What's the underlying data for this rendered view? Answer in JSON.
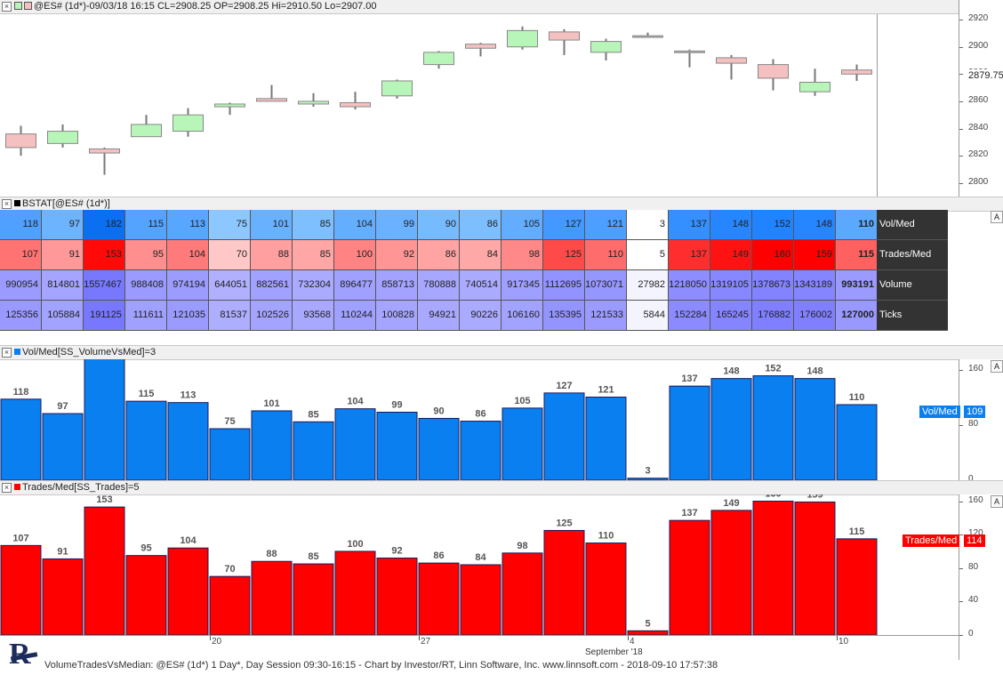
{
  "price_pane": {
    "title": "@ES# (1d*)-09/03/18 16:15 CL=2908.25 OP=2908.25 Hi=2910.50 Lo=2907.00",
    "last_price": "2879.75",
    "colors": {
      "up": "#b8f5b8",
      "down": "#f5c0c0",
      "wick": "#777777"
    }
  },
  "bstat_pane": {
    "title": "BSTAT[@ES# (1d*)]",
    "rows": [
      {
        "label": "Vol/Med",
        "values": [
          "118",
          "97",
          "182",
          "115",
          "113",
          "75",
          "101",
          "85",
          "104",
          "99",
          "90",
          "86",
          "105",
          "127",
          "121",
          "3",
          "137",
          "148",
          "152",
          "148",
          "110"
        ]
      },
      {
        "label": "Trades/Med",
        "values": [
          "107",
          "91",
          "153",
          "95",
          "104",
          "70",
          "88",
          "85",
          "100",
          "92",
          "86",
          "84",
          "98",
          "125",
          "110",
          "5",
          "137",
          "149",
          "160",
          "159",
          "115"
        ]
      },
      {
        "label": "Volume",
        "values": [
          "990954",
          "814801",
          "1557467",
          "988408",
          "974194",
          "644051",
          "882561",
          "732304",
          "896477",
          "858713",
          "780888",
          "740514",
          "917345",
          "1112695",
          "1073071",
          "27982",
          "1218050",
          "1319105",
          "1378673",
          "1343189",
          "993191"
        ]
      },
      {
        "label": "Ticks",
        "values": [
          "125356",
          "105884",
          "191125",
          "111611",
          "121035",
          "81537",
          "102526",
          "93568",
          "110244",
          "100828",
          "94921",
          "90226",
          "106160",
          "135395",
          "121533",
          "5844",
          "152284",
          "165245",
          "176882",
          "176002",
          "127000"
        ]
      }
    ]
  },
  "vol_pane": {
    "title": "Vol/Med[SS_VolumeVsMed]=3",
    "flag_label": "Vol/Med",
    "flag_value": "109",
    "color": "#0a7ff0"
  },
  "trades_pane": {
    "title": "Trades/Med[SS_Trades]=5",
    "flag_label": "Trades/Med",
    "flag_value": "114",
    "color": "#ff0000"
  },
  "x_axis": {
    "labels": [
      {
        "text": "20",
        "index": 5
      },
      {
        "text": "27",
        "index": 10
      },
      {
        "text": "4",
        "index": 15
      },
      {
        "text": "10",
        "index": 20
      }
    ],
    "month_label": "September '18"
  },
  "footer": {
    "text": "VolumeTradesVsMedian: @ES# (1d*) 1 Day*, Day Session 09:30-16:15 - Chart by Investor/RT, Linn Software, Inc. www.linnsoft.com - 2018-09-10 17:57:38"
  },
  "chart_data": [
    {
      "type": "candlestick",
      "title": "@ES# (1d*)-09/03/18 16:15 CL=2908.25 OP=2908.25 Hi=2910.50 Lo=2907.00",
      "ylim": [
        2790,
        2924
      ],
      "yticks": [
        2800,
        2820,
        2840,
        2860,
        2880,
        2900,
        2920
      ],
      "candles": [
        {
          "o": 2836,
          "c": 2826,
          "h": 2842,
          "l": 2820
        },
        {
          "o": 2829,
          "c": 2838,
          "h": 2843,
          "l": 2826
        },
        {
          "o": 2825,
          "c": 2822,
          "h": 2826,
          "l": 2806
        },
        {
          "o": 2834,
          "c": 2843,
          "h": 2850,
          "l": 2834
        },
        {
          "o": 2838,
          "c": 2850,
          "h": 2855,
          "l": 2834
        },
        {
          "o": 2856,
          "c": 2858,
          "h": 2859,
          "l": 2850
        },
        {
          "o": 2862,
          "c": 2860,
          "h": 2872,
          "l": 2860
        },
        {
          "o": 2858,
          "c": 2860,
          "h": 2866,
          "l": 2856
        },
        {
          "o": 2859,
          "c": 2856,
          "h": 2867,
          "l": 2854
        },
        {
          "o": 2864,
          "c": 2875,
          "h": 2876,
          "l": 2862
        },
        {
          "o": 2887,
          "c": 2896,
          "h": 2897,
          "l": 2884
        },
        {
          "o": 2902,
          "c": 2899,
          "h": 2903,
          "l": 2893
        },
        {
          "o": 2900,
          "c": 2912,
          "h": 2915,
          "l": 2898
        },
        {
          "o": 2911,
          "c": 2905,
          "h": 2913,
          "l": 2894
        },
        {
          "o": 2896,
          "c": 2904,
          "h": 2906,
          "l": 2890
        },
        {
          "o": 2908.25,
          "c": 2908.25,
          "h": 2910.5,
          "l": 2907
        },
        {
          "o": 2897,
          "c": 2897,
          "h": 2898,
          "l": 2885
        },
        {
          "o": 2892,
          "c": 2888,
          "h": 2894,
          "l": 2876
        },
        {
          "o": 2887,
          "c": 2877,
          "h": 2891,
          "l": 2868
        },
        {
          "o": 2867,
          "c": 2874,
          "h": 2884,
          "l": 2864
        },
        {
          "o": 2883,
          "c": 2880,
          "h": 2887,
          "l": 2875
        }
      ]
    },
    {
      "type": "bar",
      "title": "Vol/Med[SS_VolumeVsMed]=3",
      "values": [
        118,
        97,
        182,
        115,
        113,
        75,
        101,
        85,
        104,
        99,
        90,
        86,
        105,
        127,
        121,
        3,
        137,
        148,
        152,
        148,
        110
      ],
      "ylim": [
        0,
        176
      ],
      "yticks": [
        0,
        80,
        160
      ]
    },
    {
      "type": "bar",
      "title": "Trades/Med[SS_Trades]=5",
      "values": [
        107,
        91,
        153,
        95,
        104,
        70,
        88,
        85,
        100,
        92,
        86,
        84,
        98,
        125,
        110,
        5,
        137,
        149,
        160,
        159,
        115
      ],
      "ylim": [
        0,
        168
      ],
      "yticks": [
        0,
        40,
        80,
        120,
        160
      ]
    }
  ]
}
